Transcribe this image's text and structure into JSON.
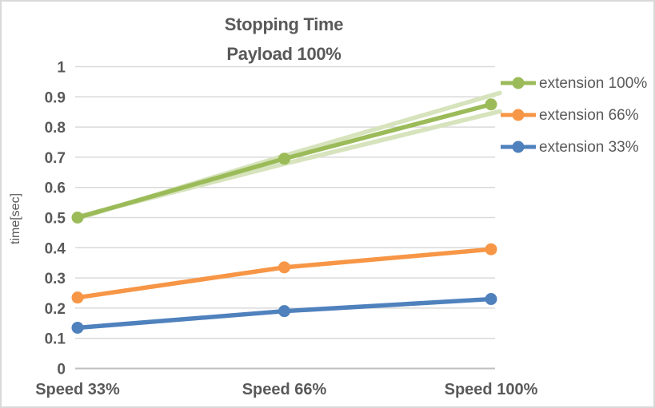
{
  "chart_data": {
    "type": "line",
    "title_lines": [
      "Stopping Time",
      "Payload 100%"
    ],
    "ylabel": "time[sec]",
    "categories": [
      "Speed 33%",
      "Speed 66%",
      "Speed 100%"
    ],
    "ytick_labels": [
      "0",
      "0.1",
      "0.2",
      "0.3",
      "0.4",
      "0.5",
      "0.6",
      "0.7",
      "0.8",
      "0.9",
      "1"
    ],
    "ylim": [
      0,
      1
    ],
    "grid": true,
    "legend_position": "right",
    "series": [
      {
        "name": "extension 100%",
        "color": "#9BBB59",
        "values": [
          0.5,
          0.695,
          0.875
        ]
      },
      {
        "name": "extension 66%",
        "color": "#F79646",
        "values": [
          0.235,
          0.335,
          0.395
        ]
      },
      {
        "name": "extension 33%",
        "color": "#4F81BD",
        "values": [
          0.135,
          0.19,
          0.23
        ]
      }
    ],
    "background_series": [
      {
        "name": "extension 100% faint run upper",
        "color": "#D6E3BC",
        "values": [
          0.497,
          0.705,
          0.913
        ]
      },
      {
        "name": "extension 100% faint run lower",
        "color": "#D6E3BC",
        "values": [
          0.503,
          0.678,
          0.852
        ]
      }
    ],
    "colors": {
      "grid": "#D9D9D9",
      "axis": "#BFBFBF",
      "text": "#595959",
      "frame_border": "#D9D9D9",
      "background": "#FFFFFF"
    }
  }
}
